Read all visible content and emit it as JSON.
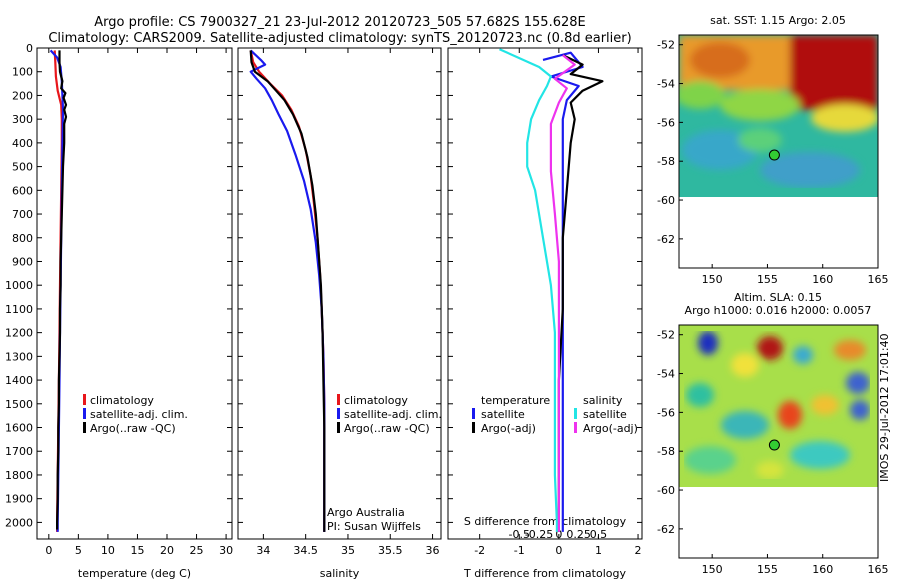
{
  "title_line1": "Argo profile: CS 7900327_21 23-Jul-2012 20120723_505 57.682S 155.628E",
  "title_line2": "Climatology: CARS2009. Satellite-adjusted climatology: synTS_20120723.nc (0.8d earlier)",
  "credit": "Argo Australia",
  "pi": "PI: Susan Wijffels",
  "footer": "IMOS 29-Jul-2012 17:01:40",
  "colors": {
    "climatology": "#e8161b",
    "satellite": "#1a1aee",
    "argo": "#000000",
    "satellite_s": "#22e5e5",
    "argo_s": "#ee33ee"
  },
  "chart_data": [
    {
      "type": "line",
      "id": "temperature",
      "xlabel": "temperature (deg C)",
      "ylabel": "",
      "xlim": [
        -2,
        31
      ],
      "ylim": [
        2070,
        0
      ],
      "xticks": [
        0,
        5,
        10,
        15,
        20,
        25,
        30
      ],
      "yticks": [
        0,
        100,
        200,
        300,
        400,
        500,
        600,
        700,
        800,
        900,
        1000,
        1100,
        1200,
        1300,
        1400,
        1500,
        1600,
        1700,
        1800,
        1900,
        2000
      ],
      "legend": [
        "climatology",
        "satellite-adj. clim.",
        "Argo(..raw -QC)"
      ],
      "series": [
        {
          "name": "climatology",
          "color": "#e8161b",
          "points": [
            [
              1.0,
              10
            ],
            [
              1.1,
              60
            ],
            [
              1.2,
              120
            ],
            [
              1.5,
              180
            ],
            [
              2.1,
              240
            ],
            [
              2.2,
              300
            ],
            [
              2.2,
              400
            ],
            [
              2.1,
              600
            ],
            [
              2.0,
              800
            ],
            [
              1.9,
              1000
            ],
            [
              1.8,
              1200
            ],
            [
              1.7,
              1400
            ],
            [
              1.6,
              1600
            ],
            [
              1.5,
              1800
            ],
            [
              1.4,
              2000
            ],
            [
              1.4,
              2040
            ]
          ]
        },
        {
          "name": "satellite-adj. clim.",
          "color": "#1a1aee",
          "points": [
            [
              0.3,
              10
            ],
            [
              1.4,
              40
            ],
            [
              2.0,
              80
            ],
            [
              2.2,
              140
            ],
            [
              2.3,
              200
            ],
            [
              2.4,
              260
            ],
            [
              2.3,
              400
            ],
            [
              2.2,
              600
            ],
            [
              2.1,
              800
            ],
            [
              2.0,
              1000
            ],
            [
              1.9,
              1200
            ],
            [
              1.8,
              1400
            ],
            [
              1.7,
              1600
            ],
            [
              1.6,
              1800
            ],
            [
              1.5,
              2000
            ],
            [
              1.5,
              2040
            ]
          ]
        },
        {
          "name": "Argo(..raw -QC)",
          "color": "#000000",
          "points": [
            [
              1.8,
              10
            ],
            [
              1.8,
              60
            ],
            [
              1.9,
              100
            ],
            [
              2.3,
              140
            ],
            [
              2.1,
              170
            ],
            [
              2.8,
              190
            ],
            [
              2.5,
              210
            ],
            [
              2.9,
              240
            ],
            [
              2.6,
              260
            ],
            [
              2.9,
              290
            ],
            [
              2.6,
              320
            ],
            [
              2.6,
              400
            ],
            [
              2.4,
              500
            ],
            [
              2.3,
              600
            ],
            [
              2.2,
              700
            ],
            [
              2.1,
              800
            ],
            [
              2.0,
              900
            ],
            [
              2.0,
              1000
            ],
            [
              1.9,
              1100
            ],
            [
              1.9,
              1200
            ],
            [
              1.8,
              1300
            ],
            [
              1.7,
              1400
            ],
            [
              1.7,
              1500
            ],
            [
              1.6,
              1600
            ],
            [
              1.6,
              1700
            ],
            [
              1.5,
              1800
            ],
            [
              1.5,
              1900
            ],
            [
              1.4,
              2000
            ],
            [
              1.4,
              2030
            ]
          ]
        }
      ]
    },
    {
      "type": "line",
      "id": "salinity",
      "xlabel": "salinity",
      "ylabel": "",
      "xlim": [
        33.7,
        36.1
      ],
      "ylim": [
        2070,
        0
      ],
      "xticks": [
        34,
        34.5,
        35,
        35.5,
        36
      ],
      "legend": [
        "climatology",
        "satellite-adj. clim.",
        "Argo(..raw -QC)"
      ],
      "series": [
        {
          "name": "climatology",
          "color": "#e8161b",
          "points": [
            [
              33.85,
              10
            ],
            [
              33.88,
              60
            ],
            [
              33.95,
              100
            ],
            [
              34.08,
              150
            ],
            [
              34.22,
              200
            ],
            [
              34.33,
              260
            ],
            [
              34.42,
              330
            ],
            [
              34.5,
              430
            ],
            [
              34.56,
              540
            ],
            [
              34.6,
              660
            ],
            [
              34.64,
              800
            ],
            [
              34.67,
              950
            ],
            [
              34.69,
              1100
            ],
            [
              34.71,
              1300
            ],
            [
              34.72,
              1500
            ],
            [
              34.72,
              1700
            ],
            [
              34.72,
              1900
            ],
            [
              34.72,
              2040
            ]
          ]
        },
        {
          "name": "satellite-adj. clim.",
          "color": "#1a1aee",
          "points": [
            [
              33.85,
              10
            ],
            [
              33.97,
              50
            ],
            [
              34.02,
              70
            ],
            [
              33.85,
              100
            ],
            [
              33.92,
              130
            ],
            [
              34.02,
              170
            ],
            [
              34.1,
              220
            ],
            [
              34.18,
              280
            ],
            [
              34.28,
              350
            ],
            [
              34.38,
              450
            ],
            [
              34.48,
              560
            ],
            [
              34.56,
              680
            ],
            [
              34.62,
              820
            ],
            [
              34.66,
              960
            ],
            [
              34.69,
              1100
            ],
            [
              34.71,
              1300
            ],
            [
              34.72,
              1500
            ],
            [
              34.72,
              1700
            ],
            [
              34.72,
              1900
            ],
            [
              34.72,
              2040
            ]
          ]
        },
        {
          "name": "Argo(..raw -QC)",
          "color": "#000000",
          "points": [
            [
              33.85,
              10
            ],
            [
              33.86,
              60
            ],
            [
              33.9,
              100
            ],
            [
              34.05,
              140
            ],
            [
              34.15,
              180
            ],
            [
              34.25,
              220
            ],
            [
              34.35,
              280
            ],
            [
              34.45,
              360
            ],
            [
              34.52,
              460
            ],
            [
              34.58,
              580
            ],
            [
              34.62,
              700
            ],
            [
              34.65,
              850
            ],
            [
              34.68,
              1000
            ],
            [
              34.7,
              1200
            ],
            [
              34.71,
              1400
            ],
            [
              34.72,
              1600
            ],
            [
              34.72,
              1800
            ],
            [
              34.72,
              2040
            ]
          ]
        }
      ]
    },
    {
      "type": "line",
      "id": "difference",
      "xlabel": "T difference from climatology",
      "top_xlabel": "S difference from climatology",
      "ylabel": "",
      "xlim": [
        -2.8,
        2.1
      ],
      "ylim": [
        2070,
        0
      ],
      "xticks": [
        -2,
        -1,
        0,
        1,
        2
      ],
      "top_xticks": [
        "-0.5",
        "-0.25",
        "0",
        "0.25",
        "0.5"
      ],
      "legend": [
        "temperature",
        "satellite",
        "Argo(-adj)",
        "salinity",
        "satellite",
        "Argo(-adj)"
      ],
      "series": [
        {
          "name": "temperature satellite",
          "color": "#1a1aee",
          "points": [
            [
              -0.4,
              50
            ],
            [
              0.3,
              20
            ],
            [
              0.6,
              80
            ],
            [
              -0.2,
              120
            ],
            [
              0.5,
              160
            ],
            [
              0.2,
              220
            ],
            [
              0.1,
              300
            ],
            [
              0.1,
              500
            ],
            [
              0.1,
              800
            ],
            [
              0.1,
              1200
            ],
            [
              0.1,
              1600
            ],
            [
              0.1,
              2000
            ],
            [
              0.1,
              2040
            ]
          ]
        },
        {
          "name": "temperature Argo(-adj)",
          "color": "#000000",
          "points": [
            [
              0.1,
              30
            ],
            [
              0.6,
              70
            ],
            [
              0.3,
              110
            ],
            [
              1.1,
              140
            ],
            [
              0.6,
              180
            ],
            [
              0.3,
              230
            ],
            [
              0.4,
              300
            ],
            [
              0.3,
              400
            ],
            [
              0.2,
              600
            ],
            [
              0.1,
              800
            ],
            [
              0.1,
              1100
            ],
            [
              0.0,
              1400
            ],
            [
              0.0,
              1700
            ],
            [
              0.0,
              2040
            ]
          ]
        },
        {
          "name": "salinity satellite",
          "color": "#22e5e5",
          "points": [
            [
              -1.5,
              5
            ],
            [
              -0.5,
              80
            ],
            [
              -0.2,
              120
            ],
            [
              -0.3,
              160
            ],
            [
              -0.5,
              220
            ],
            [
              -0.7,
              300
            ],
            [
              -0.8,
              400
            ],
            [
              -0.8,
              500
            ],
            [
              -0.6,
              600
            ],
            [
              -0.4,
              800
            ],
            [
              -0.2,
              1000
            ],
            [
              -0.1,
              1200
            ],
            [
              -0.1,
              1500
            ],
            [
              -0.1,
              1800
            ],
            [
              -0.05,
              2000
            ],
            [
              -0.05,
              2040
            ]
          ]
        },
        {
          "name": "salinity Argo(-adj)",
          "color": "#ee33ee",
          "points": [
            [
              0.1,
              30
            ],
            [
              0.4,
              70
            ],
            [
              -0.1,
              130
            ],
            [
              0.2,
              170
            ],
            [
              0.0,
              230
            ],
            [
              -0.2,
              320
            ],
            [
              -0.2,
              420
            ],
            [
              -0.2,
              520
            ],
            [
              -0.1,
              700
            ],
            [
              0.0,
              900
            ],
            [
              0.0,
              1200
            ],
            [
              0.0,
              1500
            ],
            [
              0.0,
              1800
            ],
            [
              0.0,
              2040
            ]
          ]
        }
      ]
    },
    {
      "type": "heatmap",
      "id": "sst-map",
      "title": "sat. SST: 1.15 Argo: 2.05",
      "xlim": [
        147,
        165
      ],
      "ylim": [
        -63.5,
        -51.5
      ],
      "xticks": [
        150,
        155,
        160,
        165
      ],
      "yticks": [
        -52,
        -54,
        -56,
        -58,
        -60,
        -62
      ],
      "data_extent_lat": [
        -60,
        -51.5
      ],
      "marker": {
        "lon": 155.628,
        "lat": -57.682,
        "color": "#33cc33"
      }
    },
    {
      "type": "heatmap",
      "id": "sla-map",
      "title": "Altim. SLA: 0.15",
      "subtitle": "Argo h1000: 0.016 h2000: 0.0057",
      "xlim": [
        147,
        165
      ],
      "ylim": [
        -63.5,
        -51.5
      ],
      "xticks": [
        150,
        155,
        160,
        165
      ],
      "yticks": [
        -52,
        -54,
        -56,
        -58,
        -60,
        -62
      ],
      "data_extent_lat": [
        -60,
        -51.5
      ],
      "marker": {
        "lon": 155.628,
        "lat": -57.682,
        "color": "#33cc33"
      }
    }
  ]
}
